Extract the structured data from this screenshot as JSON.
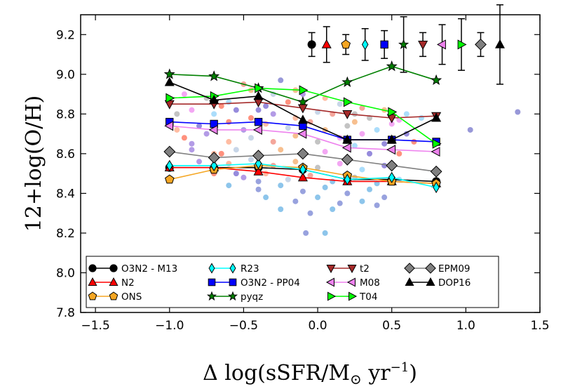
{
  "chart_data": {
    "type": "line",
    "title": "",
    "xlabel_main": "Δ log(sSFR/M",
    "xlabel_sub": "⊙",
    "xlabel_unit": " yr",
    "xlabel_sup": "−1",
    "xlabel_close": ")",
    "ylabel": "12+log(O/H)",
    "xlim": [
      -1.6,
      1.5
    ],
    "ylim": [
      7.8,
      9.3
    ],
    "xticks": [
      -1.5,
      -1.0,
      -0.5,
      0.0,
      0.5,
      1.0,
      1.5
    ],
    "xtick_labels": [
      "−1.5",
      "−1.0",
      "−0.5",
      "0.0",
      "0.5",
      "1.0",
      "1.5"
    ],
    "yticks": [
      7.8,
      8.0,
      8.2,
      8.4,
      8.6,
      8.8,
      9.0,
      9.2
    ],
    "ytick_labels": [
      "7.8",
      "8.0",
      "8.2",
      "8.4",
      "8.6",
      "8.8",
      "9.0",
      "9.2"
    ],
    "x": [
      -1.0,
      -0.7,
      -0.4,
      -0.1,
      0.2,
      0.5,
      0.8
    ],
    "series": [
      {
        "name": "O3N2 - M13",
        "color": "#000000",
        "marker": "circle",
        "values": [
          8.53,
          8.53,
          8.53,
          8.52,
          8.47,
          8.47,
          8.46
        ]
      },
      {
        "name": "N2",
        "color": "#ff0000",
        "marker": "triangle-up",
        "values": [
          8.53,
          8.53,
          8.51,
          8.48,
          8.46,
          8.46,
          8.45
        ]
      },
      {
        "name": "ONS",
        "color": "#f5a623",
        "marker": "pentagon",
        "values": [
          8.47,
          8.52,
          8.54,
          8.53,
          8.49,
          8.46,
          8.45
        ]
      },
      {
        "name": "R23",
        "color": "#00ffff",
        "marker": "diamond",
        "values": [
          8.54,
          8.54,
          8.55,
          8.52,
          8.47,
          8.48,
          8.43
        ]
      },
      {
        "name": "O3N2 - PP04",
        "color": "#0000ff",
        "marker": "square",
        "values": [
          8.76,
          8.75,
          8.76,
          8.74,
          8.67,
          8.67,
          8.66
        ]
      },
      {
        "name": "pyqz",
        "color": "#008000",
        "marker": "star",
        "values": [
          9.0,
          8.99,
          8.93,
          8.86,
          8.96,
          9.04,
          8.97
        ]
      },
      {
        "name": "t2",
        "color": "#a52a2a",
        "marker": "triangle-down",
        "values": [
          8.85,
          8.85,
          8.86,
          8.83,
          8.8,
          8.78,
          8.79
        ]
      },
      {
        "name": "M08",
        "color": "#ee82ee",
        "marker": "triangle-left",
        "values": [
          8.74,
          8.72,
          8.72,
          8.7,
          8.63,
          8.62,
          8.61
        ]
      },
      {
        "name": "T04",
        "color": "#00ff00",
        "marker": "triangle-right",
        "values": [
          8.88,
          8.89,
          8.93,
          8.92,
          8.86,
          8.81,
          8.65
        ]
      },
      {
        "name": "EPM09",
        "color": "#808080",
        "marker": "diamond-large",
        "values": [
          8.61,
          8.58,
          8.59,
          8.6,
          8.57,
          8.54,
          8.51
        ]
      },
      {
        "name": "DOP16",
        "color": "#000000",
        "marker": "triangle-up",
        "values": [
          8.96,
          8.87,
          8.89,
          8.77,
          8.67,
          8.67,
          8.78
        ]
      }
    ],
    "errorbars": [
      {
        "name": "O3N2 - M13",
        "x": -0.04,
        "y": 9.15,
        "err": 0.06
      },
      {
        "name": "N2",
        "x": 0.06,
        "y": 9.15,
        "err": 0.09
      },
      {
        "name": "ONS",
        "x": 0.19,
        "y": 9.15,
        "err": 0.05
      },
      {
        "name": "R23",
        "x": 0.32,
        "y": 9.15,
        "err": 0.08
      },
      {
        "name": "O3N2 - PP04",
        "x": 0.45,
        "y": 9.15,
        "err": 0.07
      },
      {
        "name": "pyqz",
        "x": 0.58,
        "y": 9.15,
        "err": 0.14
      },
      {
        "name": "t2",
        "x": 0.71,
        "y": 9.15,
        "err": 0.06
      },
      {
        "name": "M08",
        "x": 0.84,
        "y": 9.15,
        "err": 0.1
      },
      {
        "name": "T04",
        "x": 0.97,
        "y": 9.15,
        "err": 0.13
      },
      {
        "name": "EPM09",
        "x": 1.1,
        "y": 9.15,
        "err": 0.06
      },
      {
        "name": "DOP16",
        "x": 1.23,
        "y": 9.15,
        "err": 0.2
      }
    ],
    "scatter_points": [
      [
        -0.25,
        8.97
      ],
      [
        -0.45,
        8.92
      ],
      [
        -0.75,
        8.88
      ],
      [
        -0.9,
        8.9
      ],
      [
        -0.6,
        8.86
      ],
      [
        -0.35,
        8.84
      ],
      [
        -0.2,
        8.86
      ],
      [
        -0.1,
        8.9
      ],
      [
        0.05,
        8.88
      ],
      [
        0.15,
        8.85
      ],
      [
        0.3,
        8.83
      ],
      [
        0.45,
        8.82
      ],
      [
        -0.95,
        8.8
      ],
      [
        -0.85,
        8.82
      ],
      [
        -0.7,
        8.8
      ],
      [
        -0.55,
        8.82
      ],
      [
        -0.45,
        8.78
      ],
      [
        -0.3,
        8.8
      ],
      [
        -0.15,
        8.78
      ],
      [
        0.0,
        8.81
      ],
      [
        0.1,
        8.8
      ],
      [
        0.25,
        8.76
      ],
      [
        0.35,
        8.78
      ],
      [
        0.55,
        8.77
      ],
      [
        0.7,
        8.78
      ],
      [
        -0.8,
        8.74
      ],
      [
        -0.6,
        8.76
      ],
      [
        -0.5,
        8.72
      ],
      [
        -0.35,
        8.75
      ],
      [
        -0.2,
        8.73
      ],
      [
        -0.05,
        8.76
      ],
      [
        0.05,
        8.72
      ],
      [
        0.2,
        8.74
      ],
      [
        0.3,
        8.7
      ],
      [
        0.4,
        8.72
      ],
      [
        0.6,
        8.7
      ],
      [
        -0.9,
        8.68
      ],
      [
        -0.75,
        8.7
      ],
      [
        -0.6,
        8.66
      ],
      [
        -0.45,
        8.68
      ],
      [
        -0.3,
        8.66
      ],
      [
        -0.15,
        8.69
      ],
      [
        0.0,
        8.66
      ],
      [
        0.15,
        8.68
      ],
      [
        0.25,
        8.64
      ],
      [
        0.45,
        8.65
      ],
      [
        0.65,
        8.66
      ],
      [
        -0.85,
        8.62
      ],
      [
        -0.7,
        8.6
      ],
      [
        -0.55,
        8.62
      ],
      [
        -0.4,
        8.6
      ],
      [
        -0.25,
        8.62
      ],
      [
        -0.1,
        8.59
      ],
      [
        0.05,
        8.61
      ],
      [
        0.2,
        8.58
      ],
      [
        0.35,
        8.6
      ],
      [
        0.55,
        8.6
      ],
      [
        -0.8,
        8.56
      ],
      [
        -0.6,
        8.55
      ],
      [
        -0.45,
        8.57
      ],
      [
        -0.3,
        8.54
      ],
      [
        -0.15,
        8.56
      ],
      [
        0.0,
        8.53
      ],
      [
        0.15,
        8.55
      ],
      [
        0.3,
        8.52
      ],
      [
        0.45,
        8.54
      ],
      [
        -0.7,
        8.5
      ],
      [
        -0.5,
        8.48
      ],
      [
        -0.35,
        8.5
      ],
      [
        -0.2,
        8.47
      ],
      [
        -0.05,
        8.49
      ],
      [
        0.1,
        8.46
      ],
      [
        0.25,
        8.48
      ],
      [
        0.4,
        8.45
      ],
      [
        0.55,
        8.47
      ],
      [
        -0.6,
        8.44
      ],
      [
        -0.4,
        8.42
      ],
      [
        -0.25,
        8.44
      ],
      [
        -0.1,
        8.41
      ],
      [
        0.05,
        8.43
      ],
      [
        0.2,
        8.4
      ],
      [
        0.35,
        8.42
      ],
      [
        0.45,
        8.38
      ],
      [
        -0.35,
        8.38
      ],
      [
        -0.15,
        8.36
      ],
      [
        0.0,
        8.38
      ],
      [
        0.15,
        8.35
      ],
      [
        0.3,
        8.36
      ],
      [
        0.4,
        8.34
      ],
      [
        0.1,
        8.32
      ],
      [
        -0.05,
        8.3
      ],
      [
        -0.25,
        8.32
      ],
      [
        -0.08,
        8.2
      ],
      [
        0.05,
        8.2
      ],
      [
        -0.4,
        8.46
      ],
      [
        -0.55,
        8.5
      ],
      [
        -0.65,
        8.6
      ],
      [
        -0.85,
        8.65
      ],
      [
        -0.95,
        8.72
      ],
      [
        -0.3,
        8.9
      ],
      [
        -0.5,
        8.95
      ],
      [
        -0.15,
        8.92
      ],
      [
        0.25,
        8.8
      ],
      [
        0.5,
        8.75
      ],
      [
        0.6,
        8.8
      ],
      [
        -0.4,
        8.82
      ],
      [
        -0.65,
        8.84
      ],
      [
        1.03,
        8.72
      ],
      [
        1.35,
        8.81
      ]
    ]
  }
}
